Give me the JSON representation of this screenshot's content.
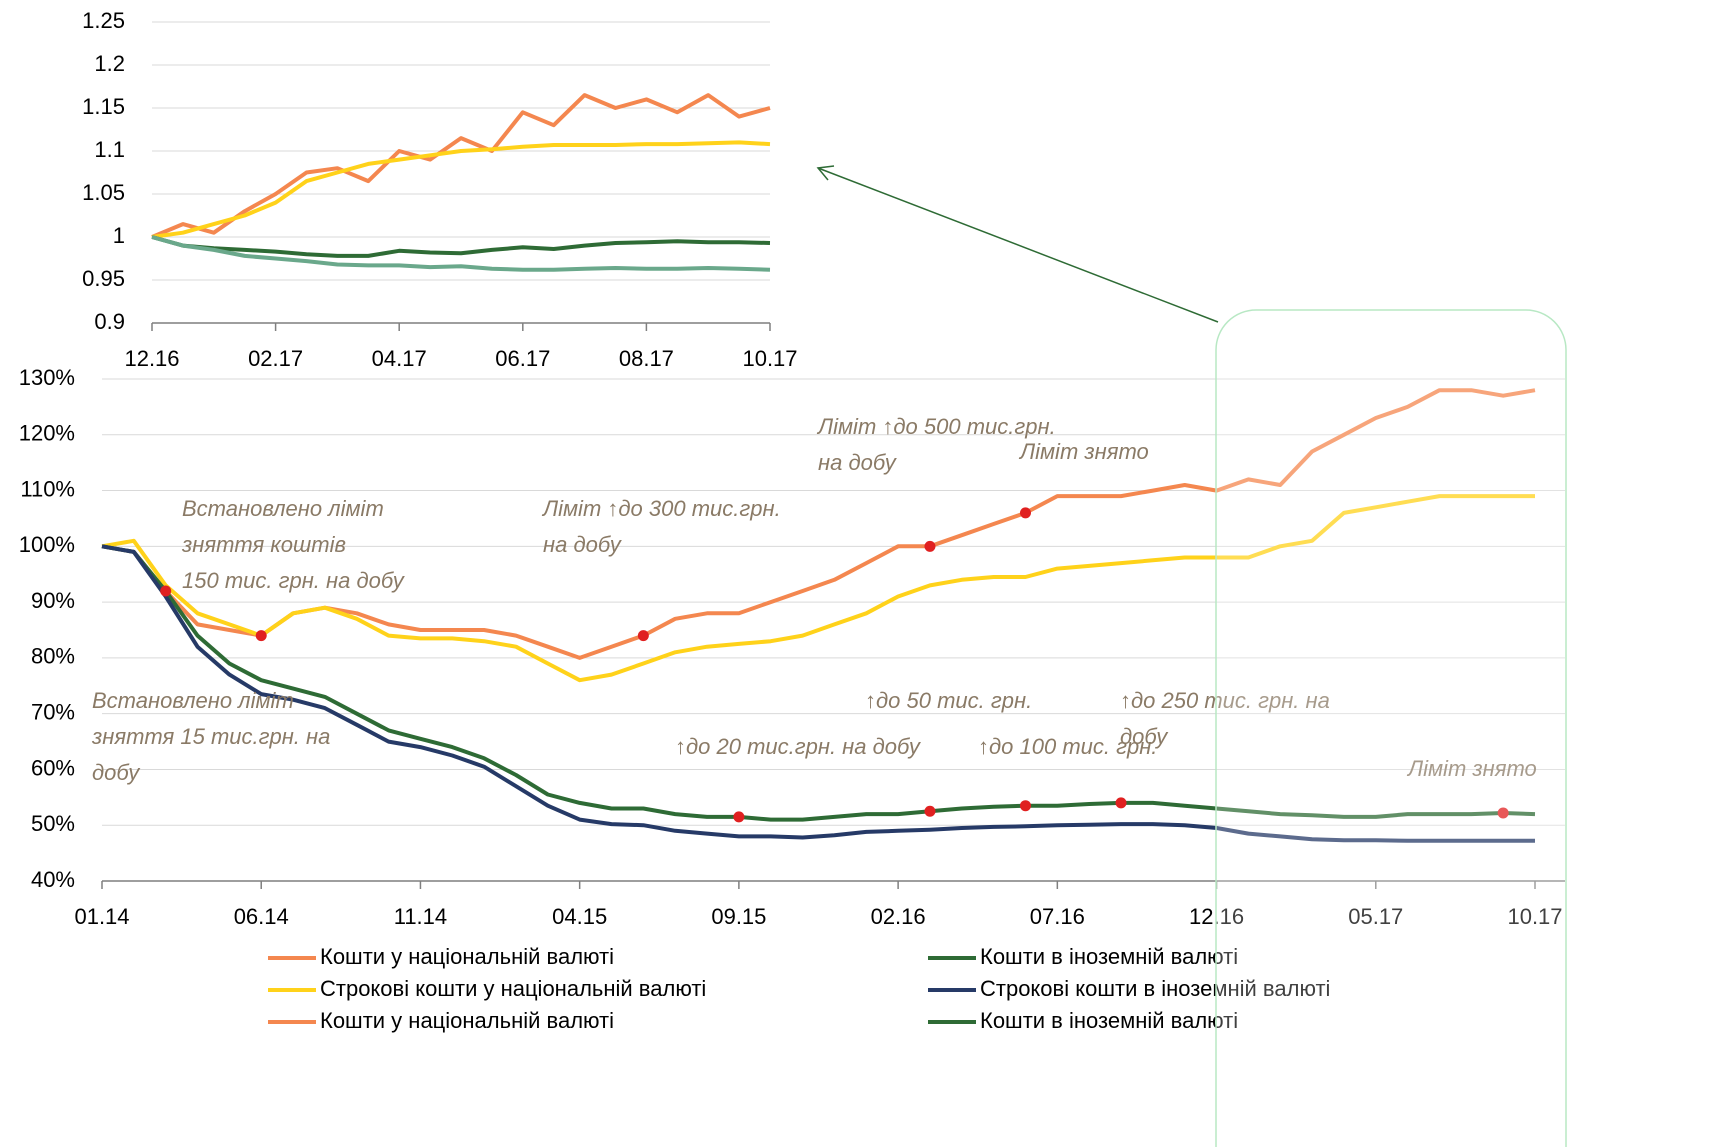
{
  "chart_data": [
    {
      "type": "line",
      "categories": [
        "12.16",
        null,
        null,
        null,
        "02.17",
        null,
        null,
        null,
        "04.17",
        null,
        null,
        null,
        "06.17",
        null,
        null,
        null,
        "08.17",
        null,
        null,
        null,
        "10.17"
      ],
      "ylim": [
        0.9,
        1.25
      ],
      "yticks": [
        0.9,
        0.95,
        1,
        1.05,
        1.1,
        1.15,
        1.2,
        1.25
      ],
      "grid": true,
      "series": [
        {
          "name": "Кошти у національній валюті",
          "color": "#f4874f",
          "values": [
            1.0,
            1.015,
            1.005,
            1.03,
            1.05,
            1.075,
            1.08,
            1.065,
            1.1,
            1.09,
            1.115,
            1.1,
            1.145,
            1.13,
            1.165,
            1.15,
            1.16,
            1.145,
            1.165,
            1.14,
            1.15
          ]
        },
        {
          "color": "#ffd21a",
          "values": [
            1.0,
            1.005,
            1.015,
            1.025,
            1.04,
            1.065,
            1.075,
            1.085,
            1.09,
            1.095,
            1.1,
            1.102,
            1.105,
            1.107,
            1.107,
            1.107,
            1.108,
            1.108,
            1.109,
            1.11,
            1.108
          ]
        },
        {
          "name": "Кошти в іноземній валюті",
          "color": "#2e6b35",
          "values": [
            1.0,
            0.99,
            0.987,
            0.985,
            0.983,
            0.98,
            0.978,
            0.978,
            0.984,
            0.982,
            0.981,
            0.985,
            0.988,
            0.986,
            0.99,
            0.993,
            0.994,
            0.995,
            0.994,
            0.994,
            0.993
          ]
        },
        {
          "color": "#6aa88b",
          "values": [
            1.0,
            0.99,
            0.985,
            0.978,
            0.975,
            0.972,
            0.968,
            0.967,
            0.967,
            0.965,
            0.966,
            0.963,
            0.962,
            0.962,
            0.963,
            0.964,
            0.963,
            0.963,
            0.964,
            0.963,
            0.962
          ]
        }
      ]
    },
    {
      "type": "line",
      "categories": [
        "01.14",
        null,
        null,
        null,
        null,
        "06.14",
        null,
        null,
        null,
        null,
        "11.14",
        null,
        null,
        null,
        null,
        "04.15",
        null,
        null,
        null,
        null,
        "09.15",
        null,
        null,
        null,
        null,
        "02.16",
        null,
        null,
        null,
        null,
        "07.16",
        null,
        null,
        null,
        null,
        "12.16",
        null,
        null,
        null,
        null,
        "05.17",
        null,
        null,
        null,
        null,
        "10.17"
      ],
      "ylim": [
        40,
        130
      ],
      "yticks": [
        {
          "value": 40,
          "label": "40%"
        },
        {
          "value": 50,
          "label": "50%"
        },
        {
          "value": 60,
          "label": "60%"
        },
        {
          "value": 70,
          "label": "70%"
        },
        {
          "value": 80,
          "label": "80%"
        },
        {
          "value": 90,
          "label": "90%"
        },
        {
          "value": 100,
          "label": "100%"
        },
        {
          "value": 110,
          "label": "110%"
        },
        {
          "value": 120,
          "label": "120%"
        },
        {
          "value": 130,
          "label": "130%"
        }
      ],
      "grid": true,
      "series": [
        {
          "name": "Кошти у національній валюті",
          "color": "#f4874f",
          "values": [
            100,
            99,
            92,
            86,
            85,
            84,
            88,
            89,
            88,
            86,
            85,
            85,
            85,
            84,
            82,
            80,
            82,
            84,
            87,
            88,
            88,
            90,
            92,
            94,
            97,
            100,
            100,
            102,
            104,
            106,
            109,
            109,
            109,
            110,
            111,
            110,
            112,
            111,
            117,
            120,
            123,
            125,
            128,
            128,
            127,
            128
          ]
        },
        {
          "name": "Строкові кошти у національній валюті",
          "color": "#ffd21a",
          "values": [
            100,
            101,
            93,
            88,
            86,
            84,
            88,
            89,
            87,
            84,
            83.5,
            83.5,
            83,
            82,
            79,
            76,
            77,
            79,
            81,
            82,
            82.5,
            83,
            84,
            86,
            88,
            91,
            93,
            94,
            94.5,
            94.5,
            96,
            96.5,
            97,
            97.5,
            98,
            98,
            98,
            100,
            101,
            106,
            107,
            108,
            109,
            109,
            109,
            109
          ]
        },
        {
          "name": "Кошти в іноземній валюті",
          "color": "#2e6b35",
          "values": [
            100,
            99,
            92,
            84,
            79,
            76,
            74.5,
            73,
            70,
            67,
            65.5,
            64,
            62,
            59,
            55.5,
            54,
            53,
            53,
            52,
            51.5,
            51.5,
            51,
            51,
            51.5,
            52,
            52,
            52.5,
            53,
            53.3,
            53.5,
            53.5,
            53.8,
            54,
            54,
            53.5,
            53,
            52.5,
            52,
            51.8,
            51.5,
            51.5,
            52,
            52,
            52,
            52.2,
            52
          ]
        },
        {
          "name": "Строкові кошти в іноземній валюті",
          "color": "#263a67",
          "values": [
            100,
            99,
            91,
            82,
            77,
            73.5,
            72.5,
            71,
            68,
            65,
            64,
            62.5,
            60.5,
            57,
            53.5,
            51,
            50.2,
            50,
            49,
            48.5,
            48,
            48,
            47.8,
            48.2,
            48.8,
            49,
            49.2,
            49.5,
            49.7,
            49.8,
            50,
            50.1,
            50.2,
            50.2,
            50,
            49.5,
            48.5,
            48,
            47.5,
            47.3,
            47.3,
            47.2,
            47.2,
            47.2,
            47.2,
            47.2
          ]
        }
      ],
      "annotations": [
        [
          "Встановлено ліміт",
          "зняття коштів",
          "150 тис. грн. на добу"
        ],
        [
          "Ліміт ↑до 300 тис.грн.",
          "на добу"
        ],
        [
          "Ліміт ↑до 500 тис.грн.",
          "на добу"
        ],
        [
          "Ліміт знято"
        ],
        [
          "Встановлено ліміт",
          "зняття 15 тис.грн. на",
          "добу"
        ],
        [
          "↑до 50 тис. грн."
        ],
        [
          "↑до 250 тис. грн. на",
          "добу"
        ],
        [
          "↑до 20 тис.грн. на добу"
        ],
        [
          "↑до 100 тис. грн."
        ],
        [
          "Ліміт знято"
        ]
      ]
    }
  ]
}
